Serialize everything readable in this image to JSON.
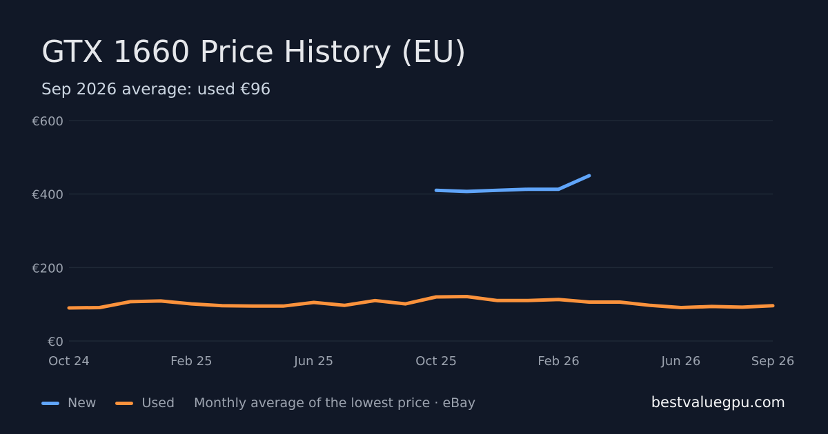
{
  "title": "GTX 1660 Price History (EU)",
  "subtitle": "Sep 2026 average: used €96",
  "legend": {
    "new_label": "New",
    "used_label": "Used",
    "note": "Monthly average of the lowest price · eBay"
  },
  "brand": "bestvaluegpu.com",
  "colors": {
    "background": "#111827",
    "grid": "#1f2937",
    "tick": "#9ca3af",
    "new": "#60a5fa",
    "used": "#fb923c"
  },
  "chart_data": {
    "type": "line",
    "title": "GTX 1660 Price History (EU)",
    "subtitle": "Sep 2026 average: used €96",
    "x": [
      "2024-10",
      "2024-11",
      "2024-12",
      "2025-01",
      "2025-02",
      "2025-03",
      "2025-04",
      "2025-05",
      "2025-06",
      "2025-07",
      "2025-08",
      "2025-09",
      "2025-10",
      "2025-11",
      "2025-12",
      "2026-01",
      "2026-02",
      "2026-03",
      "2026-04",
      "2026-05",
      "2026-06",
      "2026-07",
      "2026-08",
      "2026-09"
    ],
    "x_ticks": [
      {
        "label": "Oct 24",
        "x": "2024-10"
      },
      {
        "label": "Feb 25",
        "x": "2025-02"
      },
      {
        "label": "Jun 25",
        "x": "2025-06"
      },
      {
        "label": "Oct 25",
        "x": "2025-10"
      },
      {
        "label": "Feb 26",
        "x": "2026-02"
      },
      {
        "label": "Jun 26",
        "x": "2026-06"
      },
      {
        "label": "Sep 26",
        "x": "2026-09"
      }
    ],
    "y_ticks": [
      {
        "label": "€0",
        "value": 0
      },
      {
        "label": "€200",
        "value": 200
      },
      {
        "label": "€400",
        "value": 400
      },
      {
        "label": "€600",
        "value": 600
      }
    ],
    "ylim": [
      0,
      600
    ],
    "grid": true,
    "legend_position": "bottom-left",
    "series": [
      {
        "name": "New",
        "color": "#60a5fa",
        "values": [
          null,
          null,
          null,
          null,
          null,
          null,
          null,
          null,
          null,
          null,
          null,
          null,
          410,
          407,
          410,
          413,
          413,
          450,
          null,
          null,
          null,
          null,
          null,
          null
        ]
      },
      {
        "name": "Used",
        "color": "#fb923c",
        "values": [
          90,
          91,
          107,
          109,
          101,
          96,
          95,
          95,
          105,
          97,
          110,
          101,
          120,
          121,
          110,
          110,
          113,
          106,
          106,
          97,
          91,
          94,
          92,
          96
        ]
      }
    ]
  }
}
